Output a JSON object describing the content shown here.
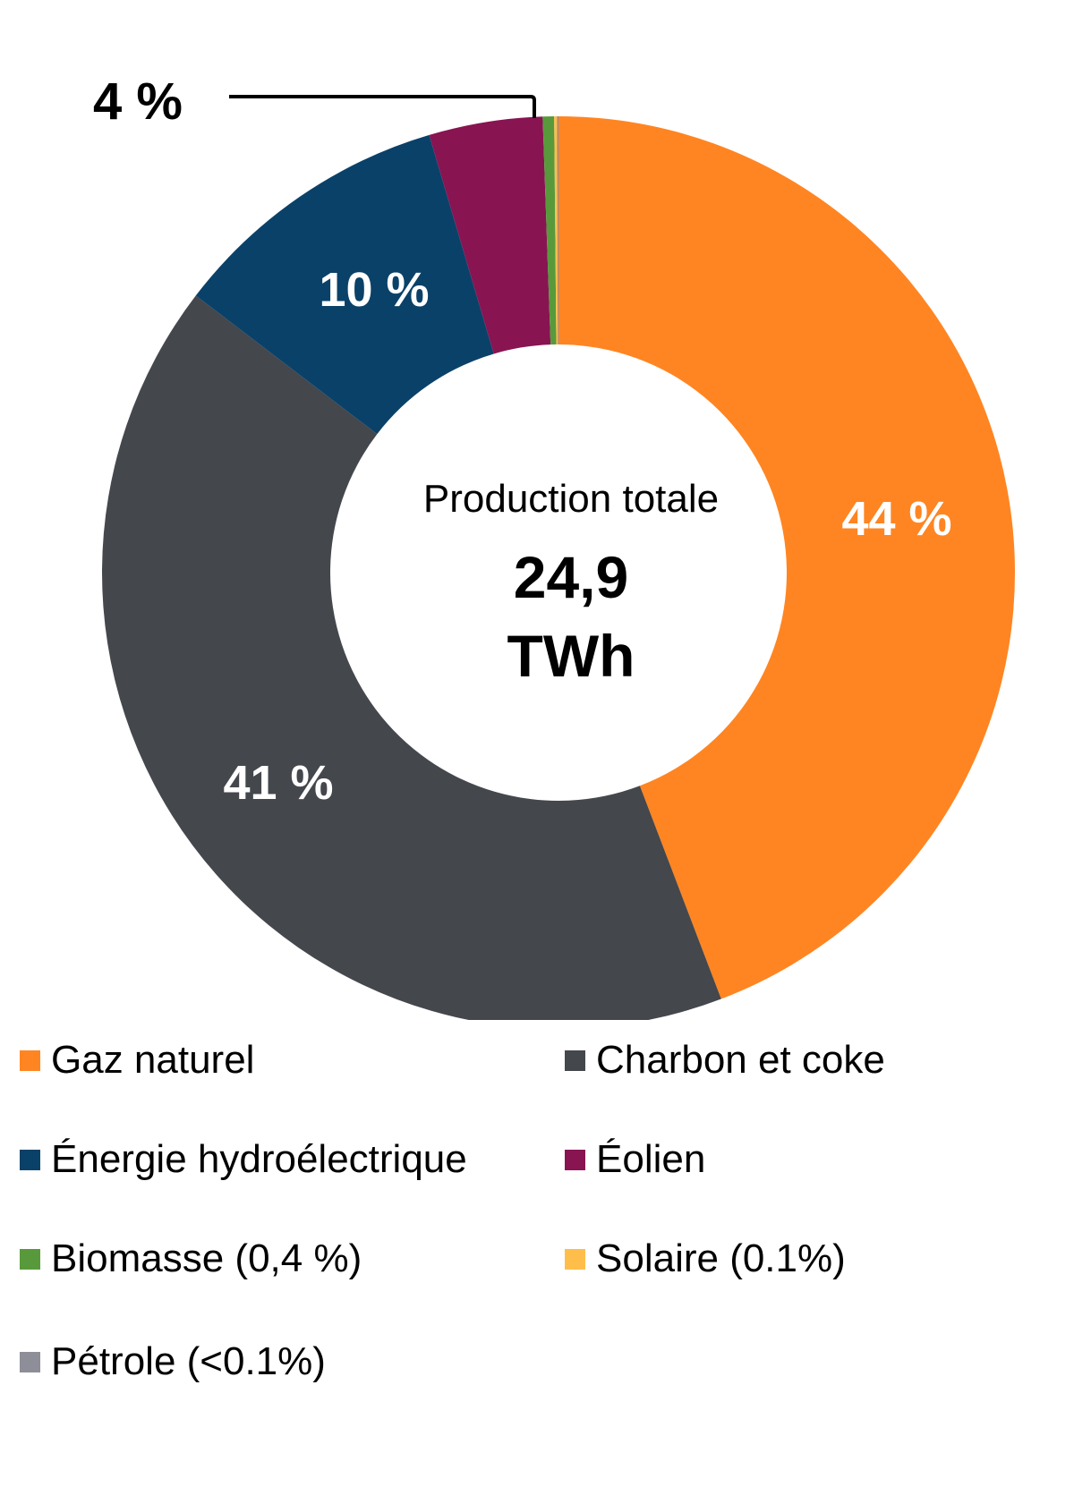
{
  "chart_data": {
    "type": "pie",
    "variant": "donut",
    "title": "",
    "center_label": {
      "title": "Production totale",
      "value": "24,9",
      "unit": "TWh"
    },
    "categories": [
      "Gaz naturel",
      "Charbon et coke",
      "Énergie hydroélectrique",
      "Éolien",
      "Biomasse",
      "Solaire",
      "Pétrole"
    ],
    "values": [
      44,
      41,
      10,
      4,
      0.4,
      0.1,
      0.05
    ],
    "colors": [
      "#FF8522",
      "#44474C",
      "#0A4169",
      "#881452",
      "#589A3B",
      "#FFBE4A",
      "#8E8E98"
    ],
    "data_labels": [
      "44 %",
      "41 %",
      "10 %",
      "4 %",
      "",
      "",
      ""
    ],
    "legend_position": "bottom",
    "legend_labels": [
      "Gaz naturel",
      "Charbon et coke",
      "Énergie hydroélectrique",
      "Éolien",
      "Biomasse (0,4 %)",
      "Solaire (0.1%)",
      "Pétrole (<0.1%)"
    ],
    "total": "24,9 TWh"
  },
  "center": {
    "title": "Production totale",
    "value": "24,9",
    "unit": "TWh"
  },
  "labels": {
    "gas": "44 %",
    "coal": "41 %",
    "hydro": "10 %",
    "wind": "4 %"
  },
  "legend": [
    {
      "label": "Gaz naturel",
      "color": "#FF8522"
    },
    {
      "label": "Charbon et coke",
      "color": "#44474C"
    },
    {
      "label": "Énergie hydroélectrique",
      "color": "#0A4169"
    },
    {
      "label": "Éolien",
      "color": "#881452"
    },
    {
      "label": "Biomasse (0,4 %)",
      "color": "#589A3B"
    },
    {
      "label": "Solaire (0.1%)",
      "color": "#FFBE4A"
    },
    {
      "label": "Pétrole (<0.1%)",
      "color": "#8E8E98"
    }
  ]
}
